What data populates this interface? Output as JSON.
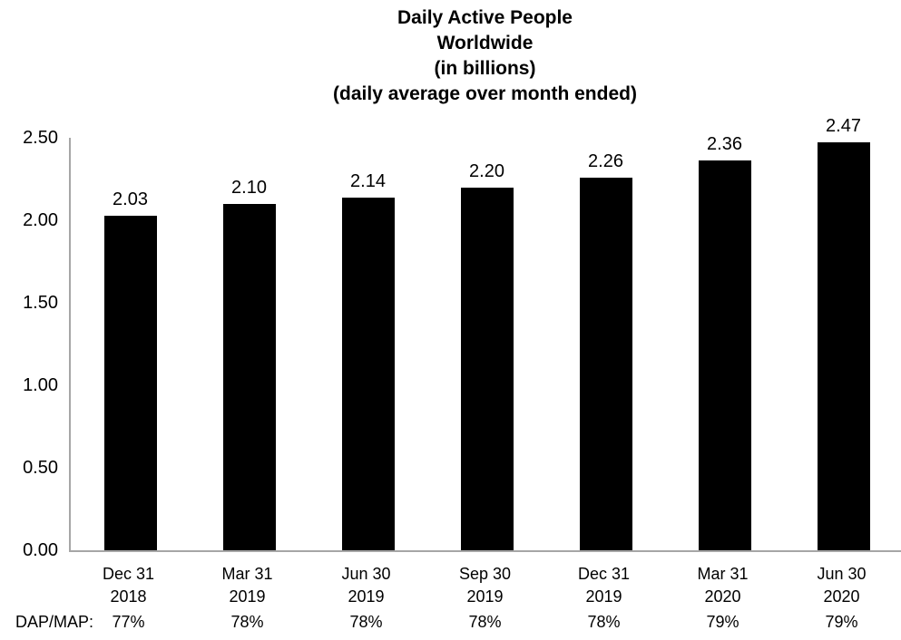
{
  "title_lines": [
    "Daily Active People",
    "Worldwide",
    "(in billions)",
    "(daily average over month ended)"
  ],
  "dap_map_label": "DAP/MAP:",
  "chart_data": {
    "type": "bar",
    "title": "Daily Active People Worldwide (in billions) (daily average over month ended)",
    "categories": [
      [
        "Dec 31",
        "2018"
      ],
      [
        "Mar 31",
        "2019"
      ],
      [
        "Jun 30",
        "2019"
      ],
      [
        "Sep 30",
        "2019"
      ],
      [
        "Dec 31",
        "2019"
      ],
      [
        "Mar 31",
        "2020"
      ],
      [
        "Jun 30",
        "2020"
      ]
    ],
    "values": [
      2.03,
      2.1,
      2.14,
      2.2,
      2.26,
      2.36,
      2.47
    ],
    "value_labels": [
      "2.03",
      "2.10",
      "2.14",
      "2.20",
      "2.26",
      "2.36",
      "2.47"
    ],
    "dap_map_values": [
      "77%",
      "78%",
      "78%",
      "78%",
      "78%",
      "79%",
      "79%"
    ],
    "y_ticks": [
      "0.00",
      "0.50",
      "1.00",
      "1.50",
      "2.00",
      "2.50"
    ],
    "ylim": [
      0,
      2.5
    ],
    "xlabel": "",
    "ylabel": "",
    "grid": false,
    "legend": false,
    "bar_color": "#000000",
    "axis_color": "#a6a6a6",
    "text_color": "#000000"
  }
}
